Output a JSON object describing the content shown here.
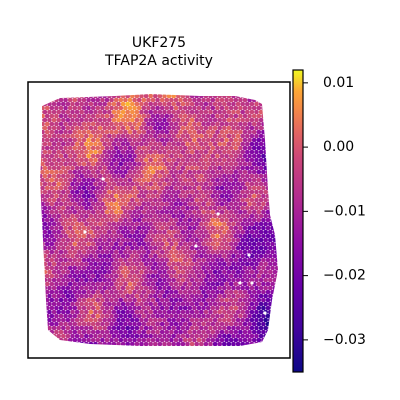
{
  "chart_data": {
    "type": "heatmap",
    "title_lines": [
      "UKF275",
      "TFAP2A activity"
    ],
    "colormap": "plasma",
    "color_range": [
      -0.035,
      0.012
    ],
    "colorbar": {
      "ticks": [
        {
          "value": 0.01,
          "label": "0.01"
        },
        {
          "value": 0.0,
          "label": "0.00"
        },
        {
          "value": -0.01,
          "label": "−0.01"
        },
        {
          "value": -0.02,
          "label": "−0.02"
        },
        {
          "value": -0.03,
          "label": "−0.03"
        }
      ]
    },
    "spatial_spots": {
      "description_of_pattern": "hexagonal spot grid filling tissue outline; higher activity toward top, lower toward right and bottom",
      "value_range_shown": [
        -0.035,
        0.012
      ]
    }
  }
}
